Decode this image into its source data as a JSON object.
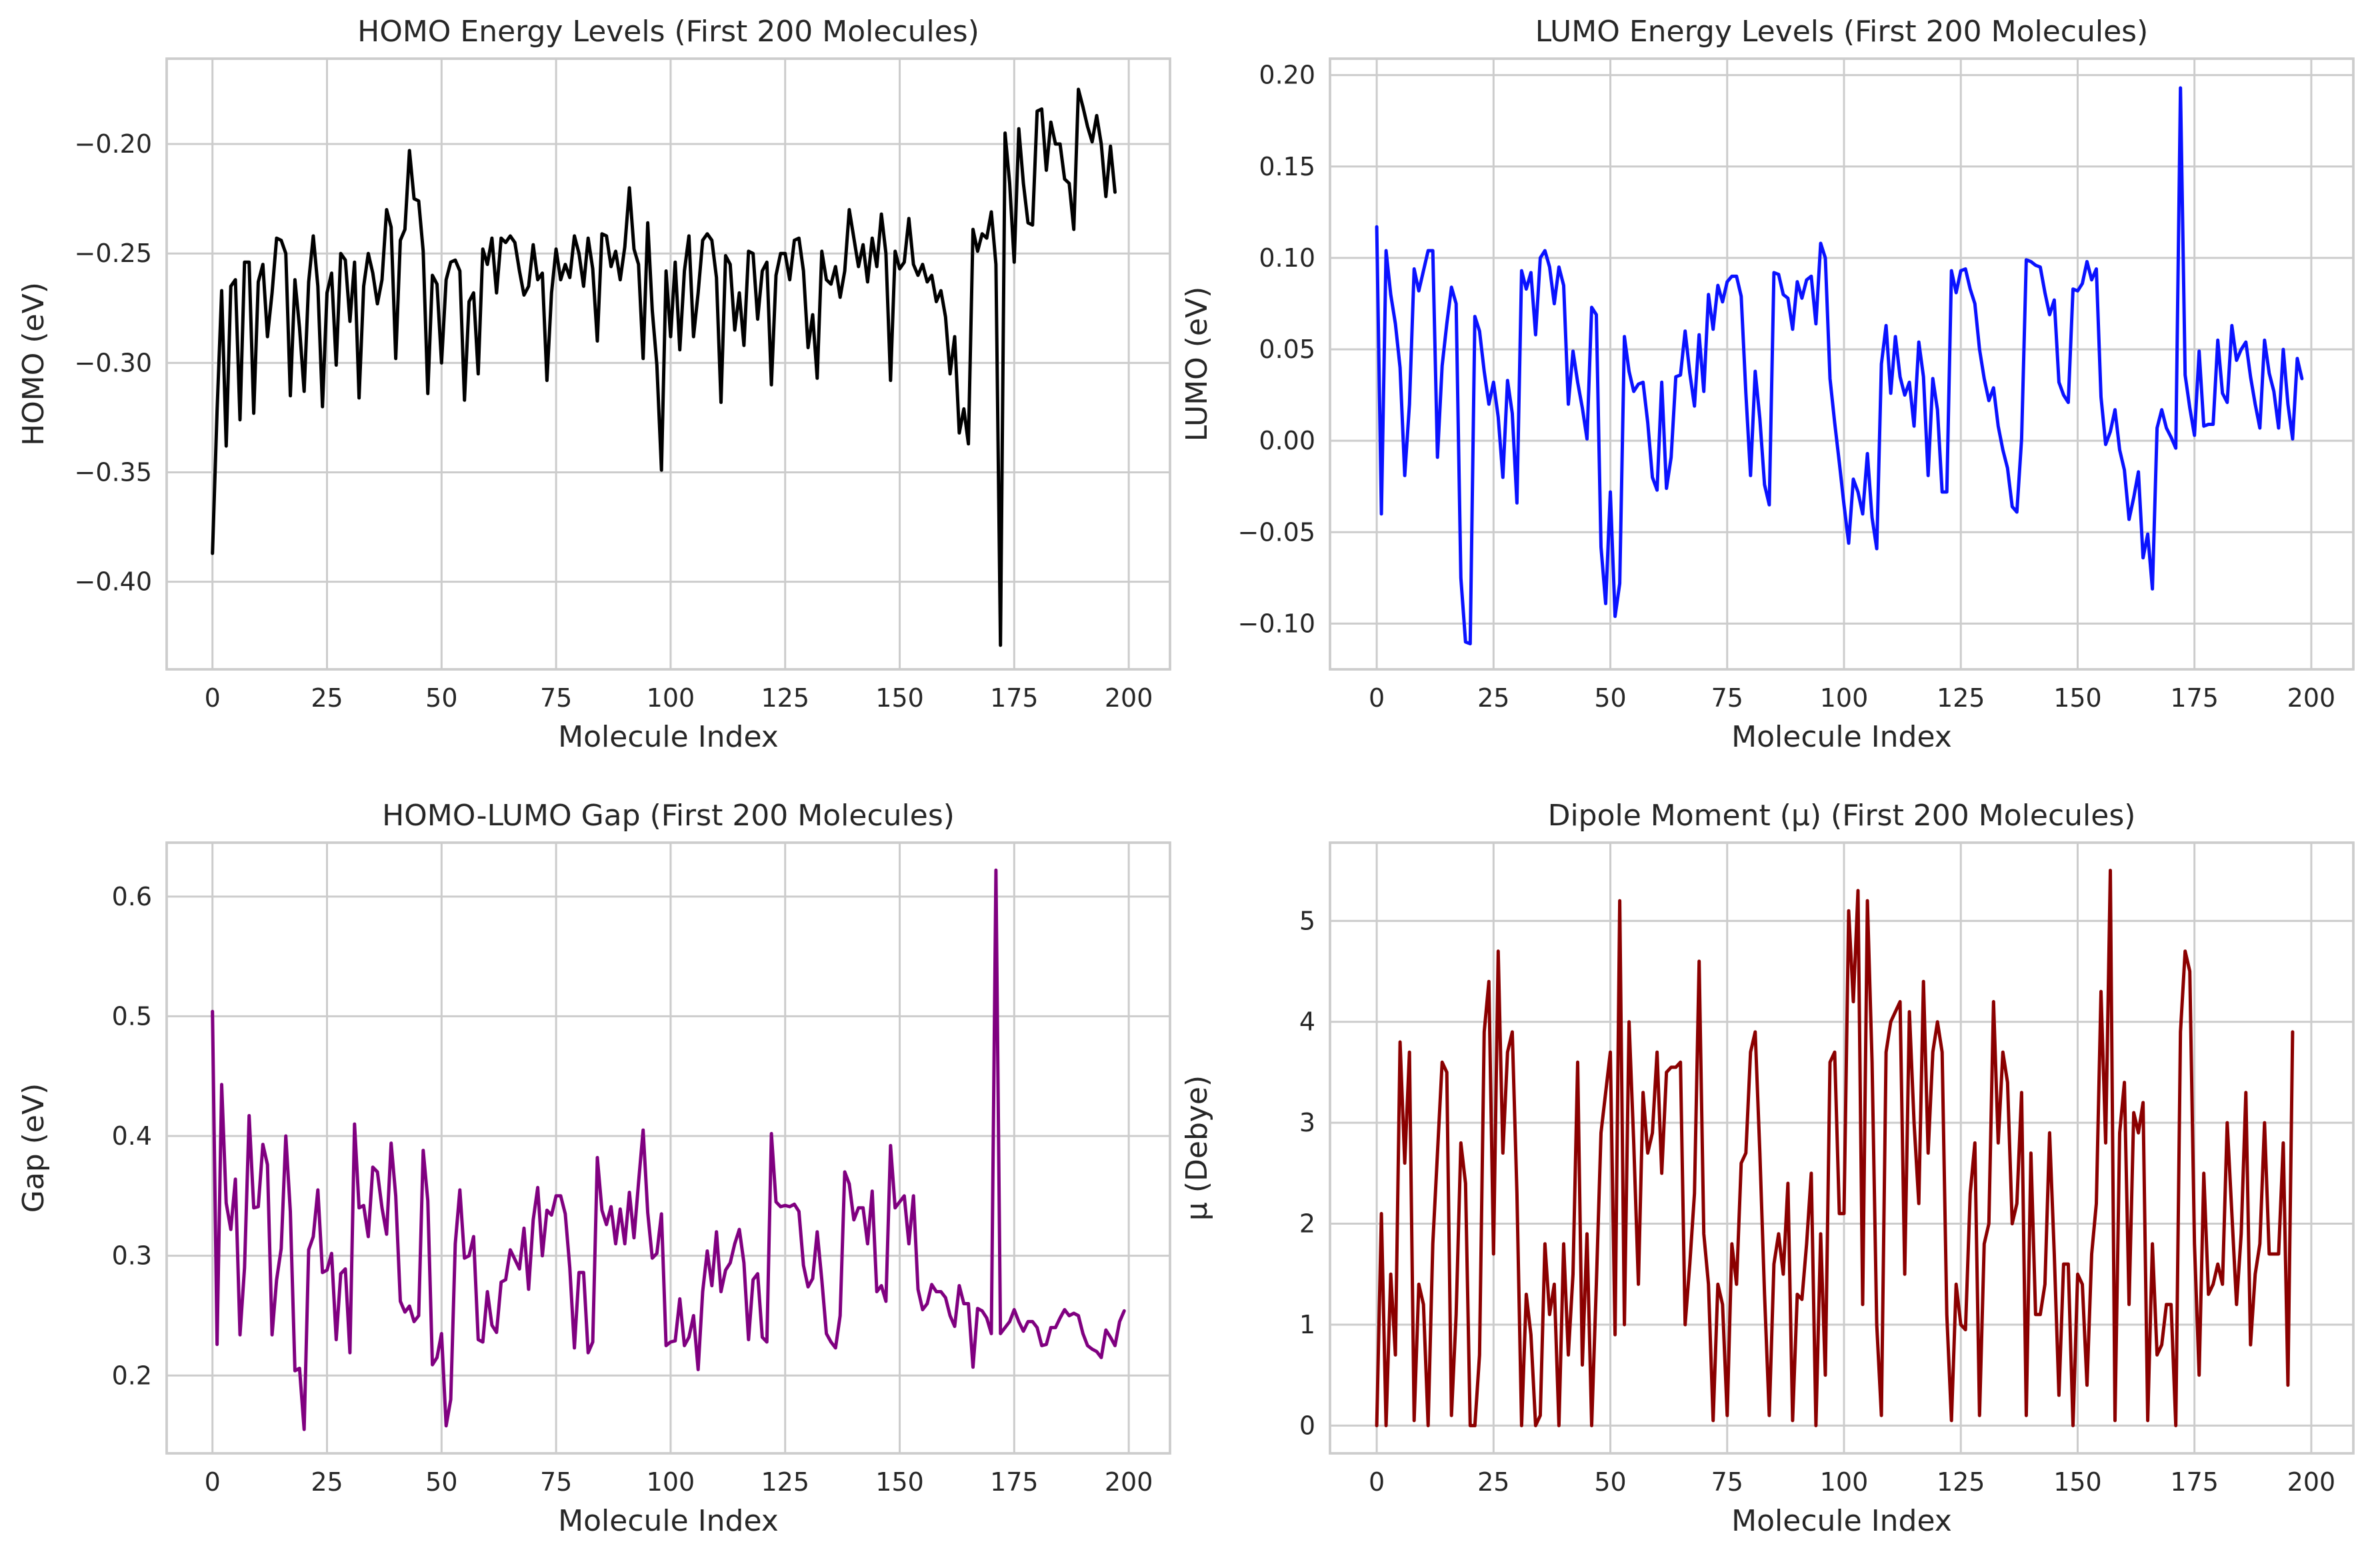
{
  "chart_data": [
    {
      "type": "line",
      "title": "HOMO Energy Levels (First 200 Molecules)",
      "xlabel": "Molecule Index",
      "ylabel": "HOMO (eV)",
      "color": "#000000",
      "xlim": [
        -10,
        209
      ],
      "ylim": [
        -0.44,
        -0.161
      ],
      "xticks": [
        0,
        25,
        50,
        75,
        100,
        125,
        150,
        175,
        200
      ],
      "yticks": [
        -0.4,
        -0.35,
        -0.3,
        -0.25,
        -0.2
      ],
      "ytick_labels": [
        "−0.40",
        "−0.35",
        "−0.30",
        "−0.25",
        "−0.20"
      ],
      "grid": true,
      "values": [
        -0.387,
        -0.322,
        -0.267,
        -0.338,
        -0.265,
        -0.262,
        -0.326,
        -0.254,
        -0.254,
        -0.323,
        -0.263,
        -0.255,
        -0.288,
        -0.268,
        -0.243,
        -0.244,
        -0.25,
        -0.315,
        -0.262,
        -0.284,
        -0.313,
        -0.263,
        -0.242,
        -0.265,
        -0.32,
        -0.268,
        -0.259,
        -0.301,
        -0.25,
        -0.253,
        -0.281,
        -0.254,
        -0.316,
        -0.265,
        -0.25,
        -0.259,
        -0.273,
        -0.262,
        -0.23,
        -0.238,
        -0.298,
        -0.244,
        -0.239,
        -0.203,
        -0.225,
        -0.226,
        -0.249,
        -0.314,
        -0.26,
        -0.264,
        -0.3,
        -0.262,
        -0.254,
        -0.253,
        -0.258,
        -0.317,
        -0.272,
        -0.268,
        -0.305,
        -0.248,
        -0.255,
        -0.243,
        -0.268,
        -0.243,
        -0.245,
        -0.242,
        -0.245,
        -0.258,
        -0.269,
        -0.265,
        -0.246,
        -0.262,
        -0.259,
        -0.308,
        -0.268,
        -0.248,
        -0.262,
        -0.255,
        -0.261,
        -0.242,
        -0.25,
        -0.265,
        -0.243,
        -0.257,
        -0.29,
        -0.241,
        -0.242,
        -0.256,
        -0.249,
        -0.262,
        -0.247,
        -0.22,
        -0.248,
        -0.255,
        -0.298,
        -0.236,
        -0.276,
        -0.301,
        -0.349,
        -0.258,
        -0.288,
        -0.254,
        -0.294,
        -0.258,
        -0.242,
        -0.288,
        -0.268,
        -0.244,
        -0.241,
        -0.244,
        -0.261,
        -0.318,
        -0.251,
        -0.255,
        -0.285,
        -0.268,
        -0.292,
        -0.249,
        -0.25,
        -0.28,
        -0.258,
        -0.254,
        -0.31,
        -0.26,
        -0.25,
        -0.25,
        -0.262,
        -0.244,
        -0.243,
        -0.258,
        -0.293,
        -0.278,
        -0.307,
        -0.249,
        -0.262,
        -0.264,
        -0.256,
        -0.27,
        -0.258,
        -0.23,
        -0.243,
        -0.256,
        -0.246,
        -0.263,
        -0.243,
        -0.256,
        -0.232,
        -0.25,
        -0.308,
        -0.249,
        -0.257,
        -0.254,
        -0.234,
        -0.255,
        -0.26,
        -0.255,
        -0.263,
        -0.26,
        -0.272,
        -0.267,
        -0.279,
        -0.305,
        -0.288,
        -0.332,
        -0.321,
        -0.337,
        -0.239,
        -0.249,
        -0.241,
        -0.243,
        -0.231,
        -0.255,
        -0.429,
        -0.195,
        -0.218,
        -0.254,
        -0.193,
        -0.218,
        -0.236,
        -0.237,
        -0.185,
        -0.184,
        -0.212,
        -0.19,
        -0.2,
        -0.2,
        -0.216,
        -0.218,
        -0.239,
        -0.175,
        -0.183,
        -0.192,
        -0.199,
        -0.187,
        -0.2,
        -0.224,
        -0.201,
        -0.222
      ],
      "x_start": 0
    },
    {
      "type": "line",
      "title": "LUMO Energy Levels (First 200 Molecules)",
      "xlabel": "Molecule Index",
      "ylabel": "LUMO (eV)",
      "color": "#0a12ff",
      "xlim": [
        -10,
        209
      ],
      "ylim": [
        -0.125,
        0.209
      ],
      "xticks": [
        0,
        25,
        50,
        75,
        100,
        125,
        150,
        175,
        200
      ],
      "yticks": [
        -0.1,
        -0.05,
        0,
        0.05,
        0.1,
        0.15,
        0.2
      ],
      "ytick_labels": [
        "−0.10",
        "−0.05",
        "0.00",
        "0.05",
        "0.10",
        "0.15",
        "0.20"
      ],
      "grid": true,
      "values": [
        0.117,
        -0.04,
        0.104,
        0.08,
        0.064,
        0.04,
        -0.019,
        0.02,
        0.094,
        0.082,
        0.093,
        0.104,
        0.104,
        -0.009,
        0.041,
        0.064,
        0.084,
        0.075,
        -0.075,
        -0.11,
        -0.111,
        0.068,
        0.06,
        0.038,
        0.02,
        0.032,
        0.013,
        -0.02,
        0.033,
        0.015,
        -0.034,
        0.093,
        0.083,
        0.092,
        0.058,
        0.1,
        0.104,
        0.095,
        0.075,
        0.095,
        0.085,
        0.02,
        0.049,
        0.032,
        0.018,
        0.001,
        0.073,
        0.069,
        -0.058,
        -0.089,
        -0.028,
        -0.096,
        -0.078,
        0.057,
        0.038,
        0.027,
        0.031,
        0.032,
        0.01,
        -0.02,
        -0.027,
        0.032,
        -0.026,
        -0.009,
        0.035,
        0.036,
        0.06,
        0.037,
        0.019,
        0.058,
        0.027,
        0.08,
        0.061,
        0.085,
        0.076,
        0.087,
        0.09,
        0.09,
        0.079,
        0.026,
        -0.019,
        0.038,
        0.012,
        -0.024,
        -0.035,
        0.092,
        0.091,
        0.08,
        0.078,
        0.061,
        0.087,
        0.078,
        0.088,
        0.09,
        0.064,
        0.108,
        0.1,
        0.034,
        0.01,
        -0.012,
        -0.035,
        -0.056,
        -0.021,
        -0.028,
        -0.04,
        -0.007,
        -0.042,
        -0.059,
        0.042,
        0.063,
        0.026,
        0.057,
        0.035,
        0.025,
        0.032,
        0.008,
        0.054,
        0.035,
        -0.019,
        0.034,
        0.017,
        -0.028,
        -0.028,
        0.093,
        0.081,
        0.093,
        0.094,
        0.083,
        0.075,
        0.05,
        0.034,
        0.022,
        0.029,
        0.008,
        -0.005,
        -0.015,
        -0.036,
        -0.039,
        0.001,
        0.099,
        0.098,
        0.096,
        0.095,
        0.081,
        0.069,
        0.077,
        0.032,
        0.025,
        0.021,
        0.083,
        0.082,
        0.086,
        0.098,
        0.088,
        0.094,
        0.024,
        -0.002,
        0.005,
        0.017,
        -0.005,
        -0.016,
        -0.043,
        -0.031,
        -0.017,
        -0.064,
        -0.051,
        -0.081,
        0.007,
        0.017,
        0.007,
        0.002,
        -0.004,
        0.193,
        0.036,
        0.018,
        0.003,
        0.049,
        0.008,
        0.009,
        0.009,
        0.055,
        0.026,
        0.021,
        0.063,
        0.044,
        0.05,
        0.054,
        0.035,
        0.02,
        0.007,
        0.055,
        0.037,
        0.027,
        0.007,
        0.05,
        0.02,
        0.001,
        0.045,
        0.034
      ],
      "x_start": 0
    },
    {
      "type": "line",
      "title": "HOMO-LUMO Gap (First 200 Molecules)",
      "xlabel": "Molecule Index",
      "ylabel": "Gap (eV)",
      "color": "#800080",
      "xlim": [
        -10,
        209
      ],
      "ylim": [
        0.135,
        0.645
      ],
      "xticks": [
        0,
        25,
        50,
        75,
        100,
        125,
        150,
        175,
        200
      ],
      "yticks": [
        0.2,
        0.3,
        0.4,
        0.5,
        0.6
      ],
      "ytick_labels": [
        "0.2",
        "0.3",
        "0.4",
        "0.5",
        "0.6"
      ],
      "grid": true,
      "values": [
        0.504,
        0.226,
        0.443,
        0.344,
        0.322,
        0.364,
        0.234,
        0.29,
        0.417,
        0.34,
        0.341,
        0.393,
        0.376,
        0.234,
        0.28,
        0.306,
        0.4,
        0.337,
        0.204,
        0.206,
        0.155,
        0.305,
        0.316,
        0.355,
        0.286,
        0.288,
        0.302,
        0.23,
        0.285,
        0.289,
        0.219,
        0.41,
        0.34,
        0.342,
        0.316,
        0.374,
        0.37,
        0.34,
        0.318,
        0.394,
        0.35,
        0.262,
        0.253,
        0.258,
        0.245,
        0.25,
        0.388,
        0.346,
        0.209,
        0.215,
        0.235,
        0.158,
        0.18,
        0.31,
        0.355,
        0.298,
        0.3,
        0.316,
        0.23,
        0.228,
        0.27,
        0.242,
        0.236,
        0.278,
        0.28,
        0.305,
        0.297,
        0.289,
        0.323,
        0.272,
        0.33,
        0.357,
        0.3,
        0.338,
        0.334,
        0.35,
        0.35,
        0.335,
        0.29,
        0.223,
        0.286,
        0.286,
        0.219,
        0.228,
        0.382,
        0.338,
        0.326,
        0.341,
        0.31,
        0.339,
        0.31,
        0.353,
        0.315,
        0.361,
        0.405,
        0.336,
        0.298,
        0.302,
        0.335,
        0.225,
        0.228,
        0.229,
        0.264,
        0.225,
        0.232,
        0.25,
        0.205,
        0.27,
        0.304,
        0.275,
        0.32,
        0.27,
        0.288,
        0.294,
        0.31,
        0.322,
        0.294,
        0.23,
        0.28,
        0.285,
        0.232,
        0.228,
        0.402,
        0.345,
        0.341,
        0.342,
        0.341,
        0.343,
        0.337,
        0.292,
        0.274,
        0.281,
        0.32,
        0.28,
        0.235,
        0.228,
        0.223,
        0.25,
        0.37,
        0.36,
        0.33,
        0.34,
        0.34,
        0.31,
        0.354,
        0.27,
        0.275,
        0.262,
        0.392,
        0.34,
        0.345,
        0.35,
        0.31,
        0.35,
        0.272,
        0.255,
        0.26,
        0.276,
        0.27,
        0.27,
        0.265,
        0.25,
        0.241,
        0.275,
        0.26,
        0.26,
        0.207,
        0.256,
        0.254,
        0.248,
        0.235,
        0.622,
        0.235,
        0.24,
        0.245,
        0.255,
        0.245,
        0.237,
        0.245,
        0.245,
        0.24,
        0.225,
        0.226,
        0.24,
        0.24,
        0.248,
        0.255,
        0.25,
        0.252,
        0.25,
        0.235,
        0.225,
        0.222,
        0.22,
        0.215,
        0.238,
        0.232,
        0.225,
        0.245,
        0.254
      ],
      "x_start": 0
    },
    {
      "type": "line",
      "title": "Dipole Moment (μ) (First 200 Molecules)",
      "xlabel": "Molecule Index",
      "ylabel": "μ (Debye)",
      "color": "#8b0000",
      "xlim": [
        -10,
        209
      ],
      "ylim": [
        -0.275,
        5.775
      ],
      "xticks": [
        0,
        25,
        50,
        75,
        100,
        125,
        150,
        175,
        200
      ],
      "yticks": [
        0,
        1,
        2,
        3,
        4,
        5
      ],
      "ytick_labels": [
        "0",
        "1",
        "2",
        "3",
        "4",
        "5"
      ],
      "grid": true,
      "values": [
        0.0,
        2.1,
        0.0,
        1.5,
        0.7,
        3.8,
        2.6,
        3.7,
        0.05,
        1.4,
        1.2,
        0.0,
        1.8,
        2.7,
        3.6,
        3.5,
        0.1,
        1.1,
        2.8,
        2.4,
        0.0,
        0.0,
        0.7,
        3.9,
        4.4,
        1.7,
        4.7,
        2.7,
        3.7,
        3.9,
        2.3,
        0.0,
        1.3,
        0.9,
        0.0,
        0.1,
        1.8,
        1.1,
        1.4,
        0.0,
        1.8,
        0.7,
        1.5,
        3.6,
        0.6,
        1.9,
        0.0,
        1.4,
        2.9,
        3.3,
        3.7,
        0.9,
        5.2,
        1.0,
        4.0,
        2.8,
        1.4,
        3.3,
        2.7,
        2.9,
        3.7,
        2.5,
        3.5,
        3.55,
        3.55,
        3.6,
        1.0,
        1.6,
        2.3,
        4.6,
        1.9,
        1.4,
        0.05,
        1.4,
        1.2,
        0.1,
        1.8,
        1.4,
        2.6,
        2.7,
        3.7,
        3.9,
        2.7,
        1.3,
        0.1,
        1.6,
        1.9,
        1.5,
        2.4,
        0.05,
        1.3,
        1.25,
        1.8,
        2.5,
        0.0,
        1.9,
        0.5,
        3.6,
        3.7,
        2.1,
        2.1,
        5.1,
        4.2,
        5.3,
        1.2,
        5.2,
        3.6,
        1.0,
        0.1,
        3.7,
        4.0,
        4.1,
        4.2,
        1.5,
        4.1,
        3.0,
        2.2,
        4.4,
        2.7,
        3.7,
        4.0,
        3.7,
        1.1,
        0.05,
        1.4,
        1.0,
        0.95,
        2.3,
        2.8,
        0.1,
        1.8,
        2.0,
        4.2,
        2.8,
        3.7,
        3.4,
        2.0,
        2.2,
        3.3,
        0.1,
        2.7,
        1.1,
        1.1,
        1.4,
        2.9,
        1.7,
        0.3,
        1.6,
        1.6,
        0.0,
        1.5,
        1.4,
        0.4,
        1.7,
        2.2,
        4.3,
        2.8,
        5.5,
        0.05,
        2.9,
        3.4,
        1.2,
        3.1,
        2.9,
        3.2,
        0.05,
        1.8,
        0.7,
        0.8,
        1.2,
        1.2,
        0.0,
        3.9,
        4.7,
        4.5,
        1.8,
        0.5,
        2.5,
        1.3,
        1.4,
        1.6,
        1.4,
        3.0,
        2.1,
        1.2,
        1.9,
        3.3,
        0.8,
        1.5,
        1.8,
        3.0,
        1.7,
        1.7,
        1.7,
        2.8,
        0.4,
        3.9
      ],
      "x_start": 0
    }
  ]
}
